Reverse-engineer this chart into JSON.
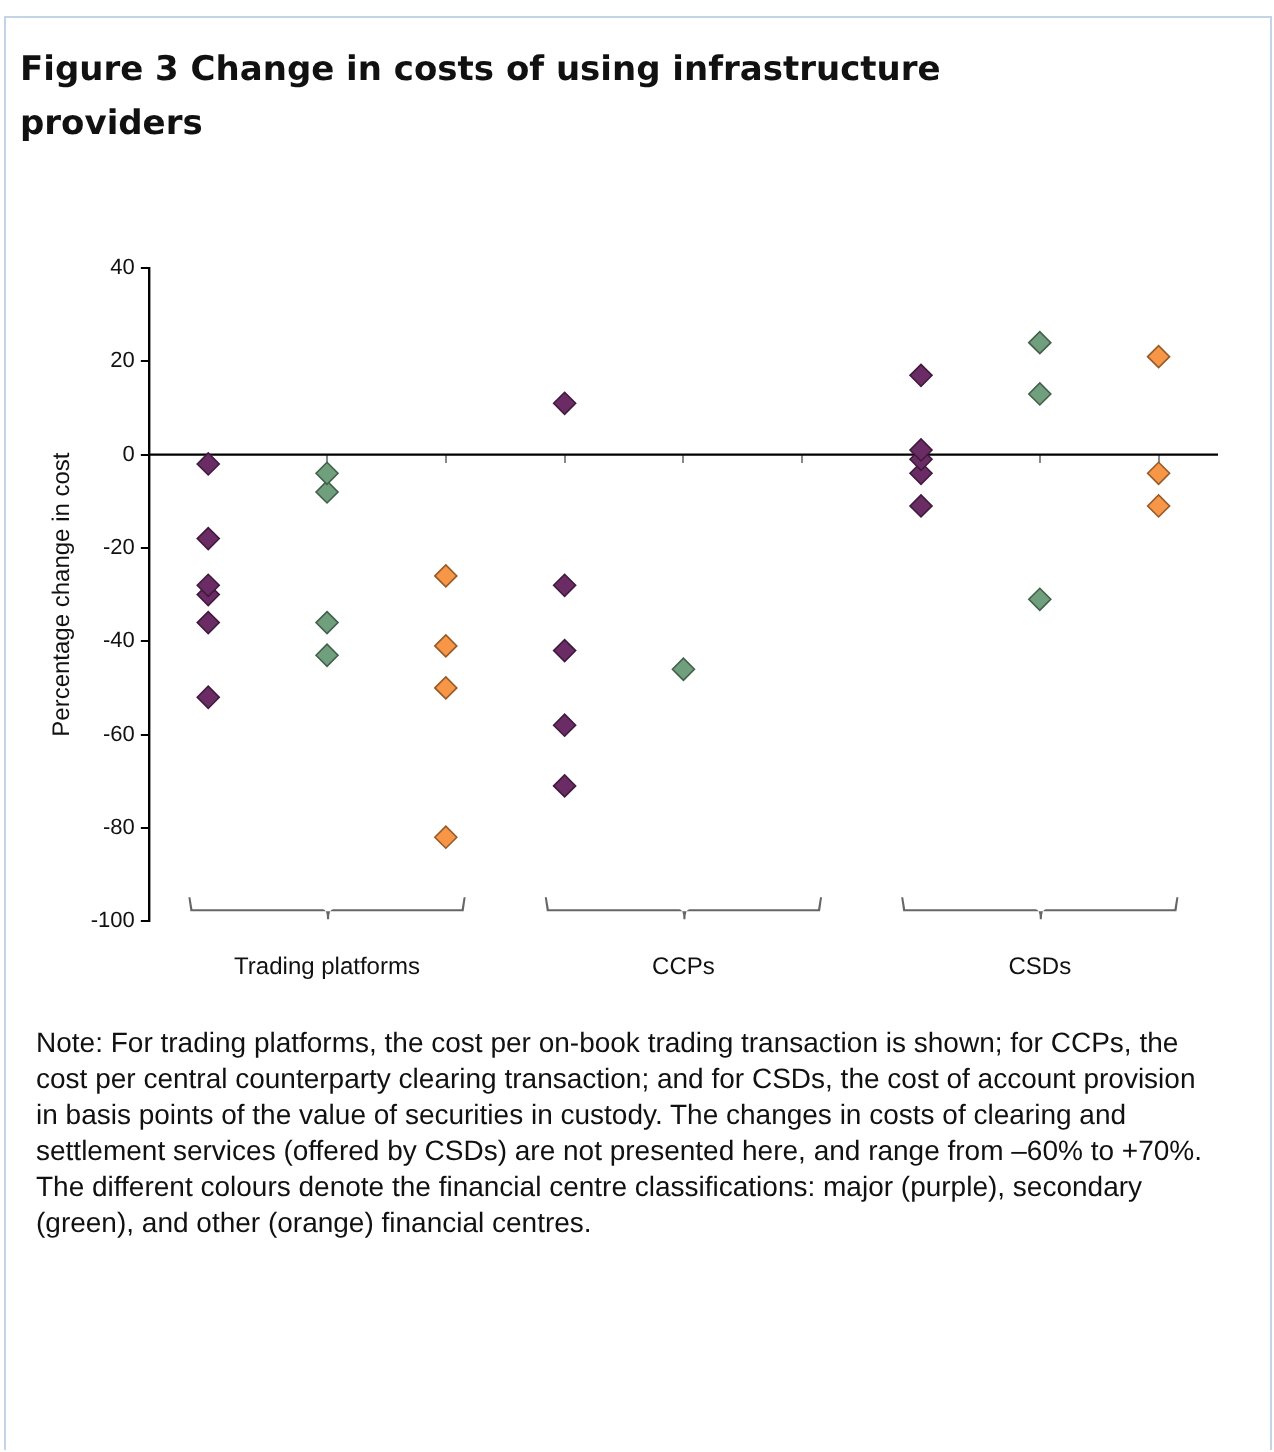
{
  "chart_data": {
    "type": "scatter",
    "title": "Figure 3  Change in costs of using infrastructure providers",
    "ylabel": "Percentage change in cost",
    "categories": [
      null,
      "Trading platforms",
      null,
      null,
      "CCPs",
      null,
      null,
      "CSDs",
      null
    ],
    "ylim": [
      -100,
      40
    ],
    "yticks": [
      -100,
      -80,
      -60,
      -40,
      -20,
      0,
      20,
      40
    ],
    "series": [
      {
        "color": "#6b2c66",
        "values": [
          -2,
          null,
          null,
          11,
          null,
          null,
          17,
          null,
          null
        ]
      },
      {
        "color": "#6b2c66",
        "values": [
          -18,
          null,
          null,
          -28,
          null,
          null,
          1,
          null,
          null
        ]
      },
      {
        "color": "#6b2c66",
        "values": [
          -28,
          null,
          null,
          -42,
          null,
          null,
          -1,
          null,
          null
        ]
      },
      {
        "color": "#6b2c66",
        "values": [
          -30,
          null,
          null,
          -58,
          null,
          null,
          -4,
          null,
          null
        ]
      },
      {
        "color": "#6b2c66",
        "values": [
          -36,
          null,
          null,
          -71,
          null,
          null,
          -11,
          null,
          null
        ]
      },
      {
        "color": "#6b2c66",
        "values": [
          -52,
          null,
          null,
          null,
          null,
          null,
          null,
          null,
          null
        ]
      },
      {
        "color": "#6f9f7c",
        "values": [
          null,
          -4,
          null,
          null,
          -46,
          null,
          null,
          24,
          null
        ]
      },
      {
        "color": "#6f9f7c",
        "values": [
          null,
          -8,
          null,
          null,
          null,
          null,
          null,
          13,
          null
        ]
      },
      {
        "color": "#6f9f7c",
        "values": [
          null,
          -36,
          null,
          null,
          null,
          null,
          null,
          -31,
          null
        ]
      },
      {
        "color": "#6f9f7c",
        "values": [
          null,
          -43,
          null,
          null,
          null,
          null,
          null,
          null,
          null
        ]
      },
      {
        "color": "#f79646",
        "values": [
          null,
          null,
          -26,
          null,
          null,
          null,
          null,
          null,
          21
        ]
      },
      {
        "color": "#f79646",
        "values": [
          null,
          null,
          -41,
          null,
          null,
          null,
          null,
          null,
          -4
        ]
      },
      {
        "color": "#f79646",
        "values": [
          null,
          null,
          -50,
          null,
          null,
          null,
          null,
          null,
          -11
        ]
      },
      {
        "color": "#f79646",
        "values": [
          null,
          null,
          -82,
          null,
          null,
          null,
          null,
          null,
          null
        ]
      }
    ],
    "annotations": [
      "Note: For trading platforms, the cost per on-book trading transaction is shown; for CCPs, the cost per central counterparty clearing transaction; and for CSDs, the cost of account provision in basis points of the value of securities in custody. The changes in costs of clearing and settlement services (offered by CSDs) are not presented here, and range from –60% to +70%. The different colours denote the financial centre classifications: major (purple), secondary (green), and other (orange) financial centres."
    ],
    "ref_lines": [
      {
        "axis": "y",
        "value": 0,
        "color": "#000000"
      }
    ],
    "marker": "diamond",
    "grid": false,
    "legend": false
  }
}
